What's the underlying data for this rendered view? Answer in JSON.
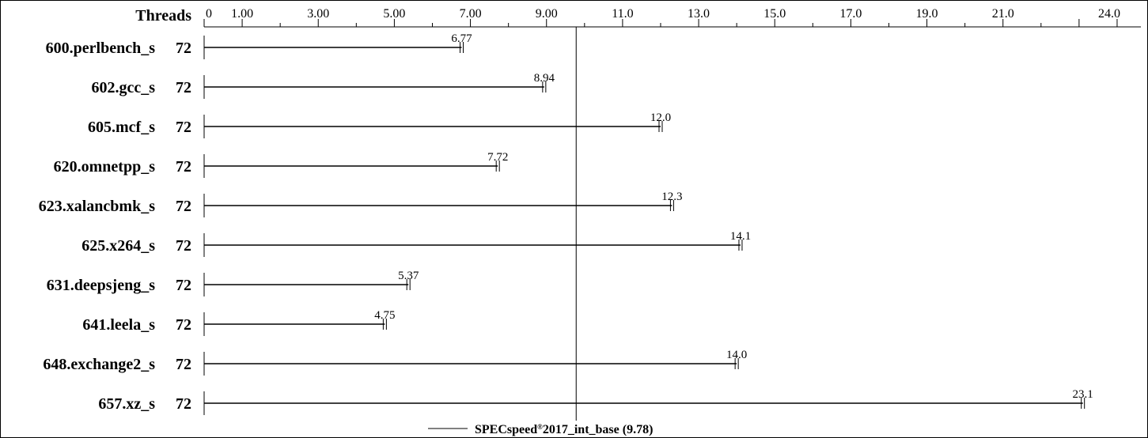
{
  "chart_data": {
    "type": "bar",
    "column_header": "Threads",
    "categories": [
      "600.perlbench_s",
      "602.gcc_s",
      "605.mcf_s",
      "620.omnetpp_s",
      "623.xalancbmk_s",
      "625.x264_s",
      "631.deepsjeng_s",
      "641.leela_s",
      "648.exchange2_s",
      "657.xz_s"
    ],
    "threads": [
      "72",
      "72",
      "72",
      "72",
      "72",
      "72",
      "72",
      "72",
      "72",
      "72"
    ],
    "values": [
      6.77,
      8.94,
      12.0,
      7.72,
      12.3,
      14.1,
      5.37,
      4.75,
      14.0,
      23.1
    ],
    "value_labels": [
      "6.77",
      "8.94",
      "12.0",
      "7.72",
      "12.3",
      "14.1",
      "5.37",
      "4.75",
      "14.0",
      "23.1"
    ],
    "xlim": [
      0,
      24.5
    ],
    "tick_values": [
      0,
      1,
      3,
      5,
      7,
      9,
      11,
      13,
      15,
      17,
      19,
      21,
      24
    ],
    "tick_labels": [
      "0",
      "1.00",
      "3.00",
      "5.00",
      "7.00",
      "9.00",
      "11.0",
      "13.0",
      "15.0",
      "17.0",
      "19.0",
      "21.0",
      "24.0"
    ],
    "reference": {
      "value": 9.78,
      "label": "2017_int_base (9.78)",
      "label_prefix": "SPECspeed",
      "label_mark": "®"
    },
    "grid": false
  }
}
